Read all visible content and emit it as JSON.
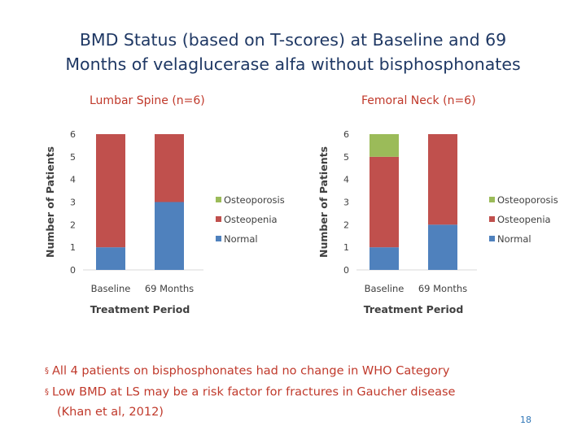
{
  "title_line1": "BMD Status (based on T-scores) at Baseline and 69",
  "title_line2": "Months of velaglucerase alfa without bisphosphonates",
  "colors": {
    "osteoporosis": "#9bbb59",
    "osteopenia": "#c0504d",
    "normal": "#4f81bd",
    "title": "#1f3864",
    "accent": "#c0392b"
  },
  "chart_data": [
    {
      "type": "bar",
      "stacked": true,
      "title": "Lumbar Spine (n=6)",
      "xlabel": "Treatment Period",
      "ylabel": "Number of Patients",
      "categories": [
        "Baseline",
        "69 Months"
      ],
      "yticks": [
        "0",
        "1",
        "2",
        "3",
        "4",
        "5",
        "6"
      ],
      "ylim": [
        0,
        6
      ],
      "grid": false,
      "legend_position": "right",
      "series": [
        {
          "name": "Normal",
          "values": [
            1,
            3
          ],
          "color": "#4f81bd"
        },
        {
          "name": "Osteopenia",
          "values": [
            5,
            3
          ],
          "color": "#c0504d"
        },
        {
          "name": "Osteoporosis",
          "values": [
            0,
            0
          ],
          "color": "#9bbb59"
        }
      ]
    },
    {
      "type": "bar",
      "stacked": true,
      "title": "Femoral Neck (n=6)",
      "xlabel": "Treatment Period",
      "ylabel": "Number of Patients",
      "categories": [
        "Baseline",
        "69 Months"
      ],
      "yticks": [
        "0",
        "1",
        "2",
        "3",
        "4",
        "5",
        "6"
      ],
      "ylim": [
        0,
        6
      ],
      "grid": false,
      "legend_position": "right",
      "series": [
        {
          "name": "Normal",
          "values": [
            1,
            2
          ],
          "color": "#4f81bd"
        },
        {
          "name": "Osteopenia",
          "values": [
            4,
            4
          ],
          "color": "#c0504d"
        },
        {
          "name": "Osteoporosis",
          "values": [
            1,
            0
          ],
          "color": "#9bbb59"
        }
      ]
    }
  ],
  "bullets": {
    "b1": "All 4 patients on bisphosphonates had no change in WHO Category",
    "b2": "Low BMD at LS may be a risk factor for fractures in Gaucher disease",
    "b2_cont": "(Khan et al, 2012)",
    "marker": "§"
  },
  "page_number": "18"
}
